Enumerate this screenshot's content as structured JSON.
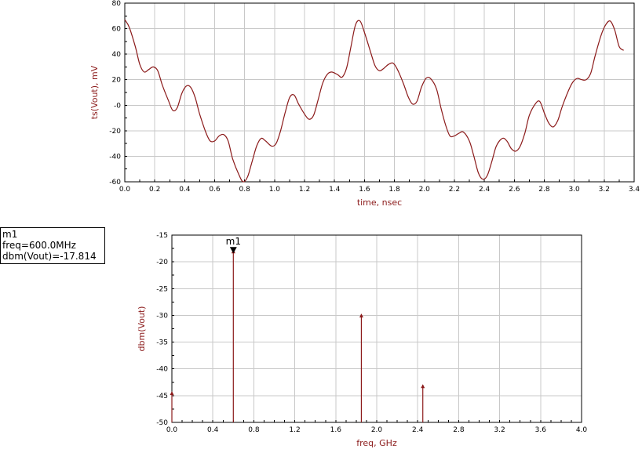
{
  "chart_data": [
    {
      "type": "line",
      "xlabel": "time, nsec",
      "ylabel": "ts(Vout), mV",
      "xlim": [
        0.0,
        3.4
      ],
      "ylim": [
        -60,
        80
      ],
      "xticks": [
        "0.0",
        "0.2",
        "0.4",
        "0.6",
        "0.8",
        "1.0",
        "1.2",
        "1.4",
        "1.6",
        "1.8",
        "2.0",
        "2.2",
        "2.4",
        "2.6",
        "2.8",
        "3.0",
        "3.2",
        "3.4"
      ],
      "yticks": [
        "-60",
        "-40",
        "-20",
        "-0",
        "20",
        "40",
        "60",
        "80"
      ],
      "color": "#8b1a1a",
      "series": [
        {
          "name": "ts(Vout)",
          "x": [
            0.0,
            0.03,
            0.07,
            0.1,
            0.13,
            0.16,
            0.19,
            0.22,
            0.25,
            0.29,
            0.32,
            0.35,
            0.38,
            0.41,
            0.44,
            0.47,
            0.5,
            0.54,
            0.57,
            0.6,
            0.63,
            0.66,
            0.69,
            0.72,
            0.76,
            0.79,
            0.82,
            0.85,
            0.88,
            0.91,
            0.94,
            0.98,
            1.01,
            1.04,
            1.07,
            1.1,
            1.13,
            1.16,
            1.2,
            1.23,
            1.26,
            1.29,
            1.32,
            1.35,
            1.38,
            1.42,
            1.45,
            1.48,
            1.51,
            1.54,
            1.57,
            1.6,
            1.64,
            1.67,
            1.7,
            1.73,
            1.76,
            1.79,
            1.82,
            1.86,
            1.89,
            1.92,
            1.95,
            1.98,
            2.01,
            2.04,
            2.08,
            2.11,
            2.14,
            2.17,
            2.2,
            2.23,
            2.26,
            2.3,
            2.33,
            2.36,
            2.39,
            2.42,
            2.45,
            2.48,
            2.52,
            2.55,
            2.58,
            2.61,
            2.64,
            2.67,
            2.7,
            2.74,
            2.77,
            2.8,
            2.83,
            2.86,
            2.89,
            2.92,
            2.96,
            2.99,
            3.02,
            3.05,
            3.08,
            3.11,
            3.14,
            3.18,
            3.21,
            3.24,
            3.27,
            3.3,
            3.33
          ],
          "values": [
            67,
            61,
            46,
            32,
            26,
            28,
            30,
            27,
            16,
            4,
            -4,
            -2,
            9,
            15,
            14,
            6,
            -7,
            -21,
            -28,
            -28,
            -24,
            -23,
            -28,
            -42,
            -54,
            -60,
            -56,
            -44,
            -32,
            -26,
            -28,
            -32,
            -30,
            -20,
            -6,
            6,
            8,
            1,
            -7,
            -11,
            -8,
            4,
            17,
            24,
            26,
            24,
            22,
            29,
            46,
            63,
            66,
            57,
            42,
            31,
            27,
            29,
            32,
            33,
            28,
            17,
            7,
            1,
            3,
            14,
            21,
            21,
            13,
            -2,
            -15,
            -24,
            -24,
            -22,
            -21,
            -28,
            -40,
            -53,
            -58,
            -55,
            -44,
            -32,
            -26,
            -28,
            -34,
            -36,
            -32,
            -22,
            -8,
            1,
            3,
            -6,
            -14,
            -17,
            -12,
            -1,
            11,
            18,
            21,
            20,
            20,
            25,
            39,
            55,
            63,
            66,
            59,
            46,
            43
          ]
        }
      ]
    },
    {
      "type": "bar",
      "xlabel": "freq, GHz",
      "ylabel": "dbm(Vout)",
      "xlim": [
        0.0,
        4.0
      ],
      "ylim": [
        -50,
        -15
      ],
      "xticks": [
        "0.0",
        "0.4",
        "0.8",
        "1.2",
        "1.6",
        "2.0",
        "2.4",
        "2.8",
        "3.2",
        "3.6",
        "4.0"
      ],
      "yticks": [
        "-50",
        "-45",
        "-40",
        "-35",
        "-30",
        "-25",
        "-20",
        "-15"
      ],
      "color": "#8b1a1a",
      "series": [
        {
          "name": "dbm(Vout)",
          "x": [
            0.0,
            0.6,
            1.85,
            2.45
          ],
          "values": [
            -44.3,
            -17.814,
            -29.8,
            -43.0
          ]
        }
      ],
      "marker": {
        "name": "m1",
        "x": 0.6,
        "y": -17.814
      }
    }
  ],
  "marker_readout": {
    "name": "m1",
    "freq_line": "freq=600.0MHz",
    "value_line": "dbm(Vout)=-17.814"
  }
}
